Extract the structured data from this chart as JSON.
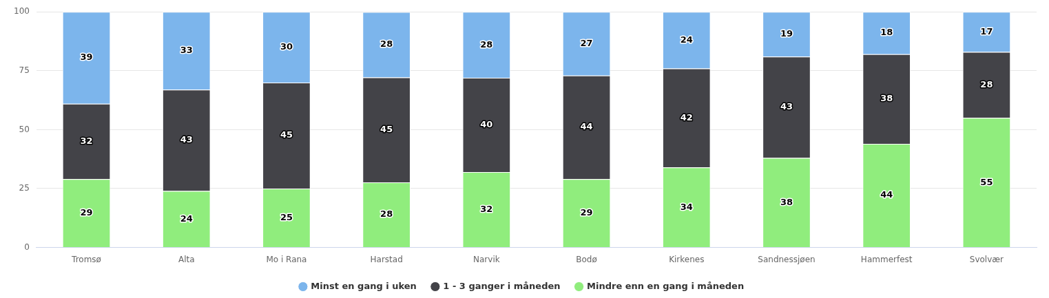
{
  "chart_data": {
    "type": "bar",
    "stacked": true,
    "categories": [
      "Tromsø",
      "Alta",
      "Mo i Rana",
      "Harstad",
      "Narvik",
      "Bodø",
      "Kirkenes",
      "Sandnessjøen",
      "Hammerfest",
      "Svolvær"
    ],
    "series": [
      {
        "name": "Mindre enn en gang i måneden",
        "color": "#90ed7d",
        "values": [
          29,
          24,
          25,
          27.6,
          32,
          29,
          34,
          38,
          44,
          55
        ],
        "value_labels": [
          "29",
          "24",
          "25",
          "28",
          "32",
          "29",
          "34",
          "38",
          "44",
          "55"
        ]
      },
      {
        "name": "1 - 3 ganger i måneden",
        "color": "#434348",
        "values": [
          32,
          43,
          45,
          44.6,
          40,
          44,
          42,
          43,
          38,
          28
        ],
        "value_labels": [
          "32",
          "43",
          "45",
          "45",
          "40",
          "44",
          "42",
          "43",
          "38",
          "28"
        ]
      },
      {
        "name": "Minst en gang i uken",
        "color": "#7cb5ec",
        "values": [
          39,
          33,
          30,
          27.7,
          28,
          27,
          24,
          19,
          18,
          17
        ],
        "value_labels": [
          "39",
          "33",
          "30",
          "28",
          "28",
          "27",
          "24",
          "19",
          "18",
          "17"
        ]
      }
    ],
    "ylim": [
      0,
      100
    ],
    "yticks": [
      0,
      25,
      50,
      75,
      100
    ],
    "grid": "y",
    "legend": "bottom"
  }
}
